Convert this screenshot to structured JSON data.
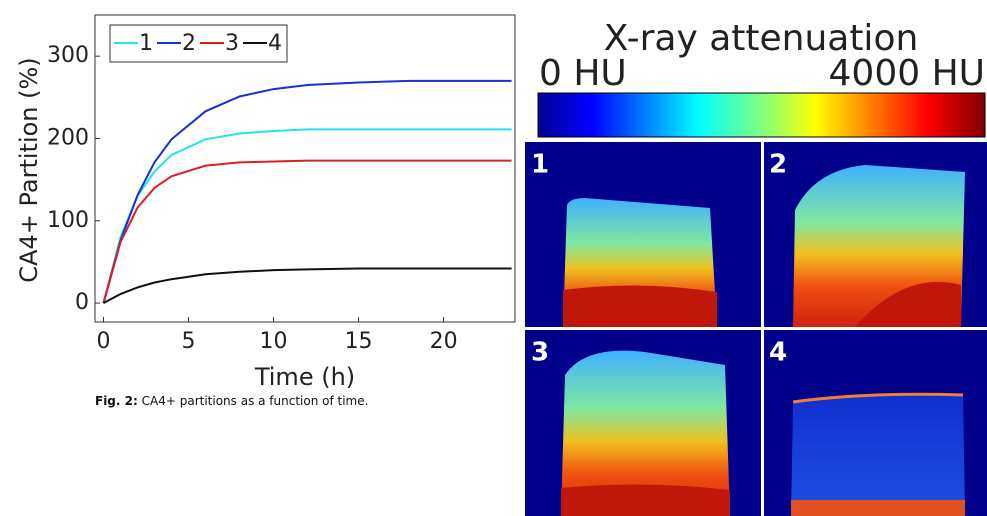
{
  "chart_data": {
    "type": "line",
    "x_label": "Time (h)",
    "y_label": "CA4+ Partition (%)",
    "x": [
      0,
      1,
      2,
      3,
      4,
      6,
      8,
      10,
      12,
      15,
      18,
      24
    ],
    "series": [
      {
        "name": "1",
        "color": "#22e5e5",
        "values": [
          0,
          80,
          130,
          160,
          180,
          199,
          206,
          209,
          211,
          211,
          211,
          211
        ]
      },
      {
        "name": "2",
        "color": "#1a2fd6",
        "values": [
          0,
          76,
          131,
          171,
          199,
          233,
          251,
          260,
          265,
          268,
          270,
          270
        ]
      },
      {
        "name": "3",
        "color": "#dd1f1f",
        "values": [
          0,
          74,
          116,
          140,
          154,
          167,
          171,
          172,
          173,
          173,
          173,
          173
        ]
      },
      {
        "name": "4",
        "color": "#111111",
        "values": [
          0,
          11,
          19,
          25,
          29,
          35,
          38,
          40,
          41,
          42,
          42,
          42
        ]
      }
    ],
    "xlim": [
      -0.5,
      24.2
    ],
    "ylim": [
      -23,
      350
    ],
    "xticks": [
      0,
      5,
      10,
      15,
      20
    ],
    "yticks": [
      0,
      100,
      200,
      300
    ]
  },
  "caption": {
    "label": "Fig. 2:",
    "text": "CA4+ partitions as a function of time."
  },
  "colorbar": {
    "title": "X-ray attenuation",
    "min_label": "0 HU",
    "max_label": "4000 HU"
  },
  "panels": [
    "1",
    "2",
    "3",
    "4"
  ]
}
